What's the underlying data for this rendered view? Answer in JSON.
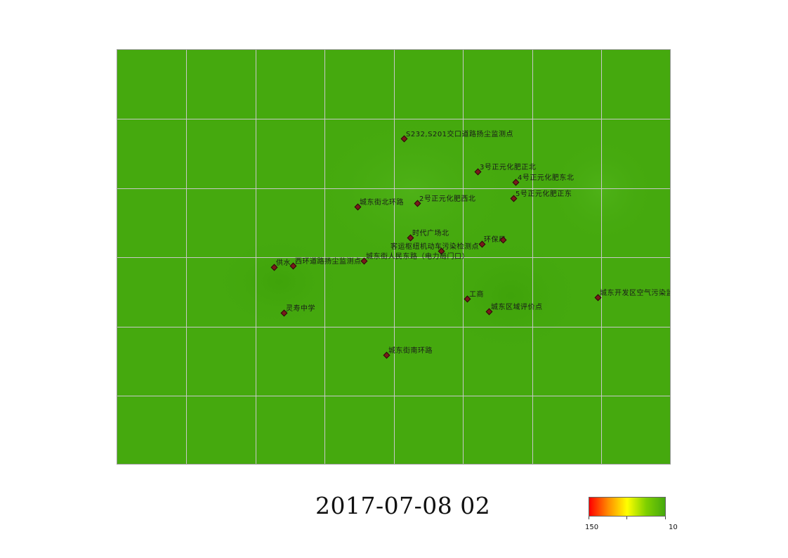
{
  "map": {
    "background_color": "#45a90e",
    "grid_color": "#c8c8c8",
    "stations": [
      {
        "id": "s232-s201",
        "label": "S232,S201交口道路扬尘监测点"
      },
      {
        "id": "no3-north",
        "label": "3号正元化肥正北"
      },
      {
        "id": "no4-northeast",
        "label": "4号正元化肥东北"
      },
      {
        "id": "no5-east",
        "label": "5号正元化肥正东"
      },
      {
        "id": "no2-northwest",
        "label": "2号正元化肥西北"
      },
      {
        "id": "chengdong-north-ring",
        "label": "城东街北环路"
      },
      {
        "id": "times-square-north",
        "label": "时代广场北"
      },
      {
        "id": "env-bureau",
        "label": "环保局"
      },
      {
        "id": "passenger-hub",
        "label": "客运枢纽机动车污染检测点"
      },
      {
        "id": "people-east-rd",
        "label": "城东街人民东路（电力局门口）"
      },
      {
        "id": "west-ring-dust",
        "label": "西环道路扬尘监测点"
      },
      {
        "id": "water-supply",
        "label": "供水"
      },
      {
        "id": "lingshou-school",
        "label": "灵寿中学"
      },
      {
        "id": "industry-commerce",
        "label": "工商"
      },
      {
        "id": "regional-eval",
        "label": "城东区域评价点"
      },
      {
        "id": "dev-zone-air",
        "label": "城东开发区空气污染监测点"
      },
      {
        "id": "south-ring",
        "label": "城东街南环路"
      }
    ]
  },
  "timestamp": "2017-07-08 02",
  "legend": {
    "min_label": "150",
    "max_label": "10",
    "colors": [
      "#ff0000",
      "#ff8c00",
      "#ffff00",
      "#7fd000",
      "#45a90e"
    ]
  }
}
